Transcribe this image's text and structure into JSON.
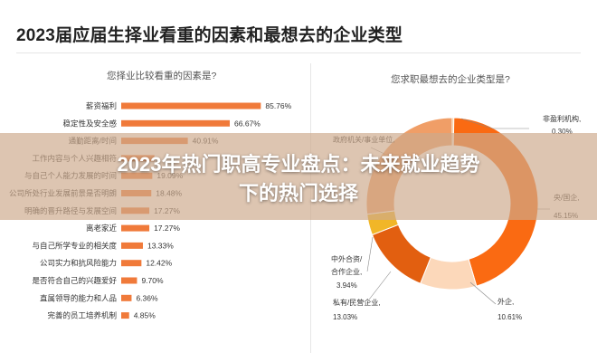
{
  "title": "2023届应届生择业看重的因素和最想去的企业类型",
  "banner": {
    "line1": "2023年热门职高专业盘点：未来就业趋势",
    "line2": "下的热门选择"
  },
  "chart_data": [
    {
      "type": "bar",
      "orientation": "horizontal",
      "title": "您择业比较看重的因素是?",
      "value_format": "percent",
      "xlim": [
        0,
        100
      ],
      "grid": false,
      "legend": "none",
      "bar_color": "#f07a3a",
      "categories": [
        "薪资福利",
        "稳定性及安全感",
        "通勤距离/时间",
        "工作内容与个人兴趣相符",
        "与自己个人能力发展的时间",
        "公司所处行业发展前景是否明朗",
        "明确的晋升路径与发展空间",
        "离老家近",
        "与自己所学专业的相关度",
        "公司实力和抗风险能力",
        "是否符合自己的兴趣爱好",
        "直属领导的能力和人品",
        "完善的员工培养机制"
      ],
      "values": [
        85.76,
        66.67,
        40.91,
        20.4,
        19.09,
        18.48,
        17.27,
        17.27,
        13.33,
        12.42,
        9.7,
        6.36,
        4.85
      ],
      "value_labels": [
        "85.76%",
        "66.67%",
        "40.91%",
        "",
        "19.09%",
        "18.48%",
        "17.27%",
        "17.27%",
        "13.33%",
        "12.42%",
        "9.70%",
        "6.36%",
        "4.85%"
      ]
    },
    {
      "type": "pie",
      "style": "donut",
      "title": "您求职最想去的企业类型是?",
      "legend": "none",
      "slices": [
        {
          "label": "非盈利机构,",
          "value": 0.3,
          "value_label": "0.30%",
          "color": "#f1b56a"
        },
        {
          "label": "央/国企,",
          "value": 45.15,
          "value_label": "45.15%",
          "color": "#fa6a12"
        },
        {
          "label": "外企,",
          "value": 10.61,
          "value_label": "10.61%",
          "color": "#fcd8ba"
        },
        {
          "label": "私有/民营企业,",
          "value": 13.03,
          "value_label": "13.03%",
          "color": "#e25f10"
        },
        {
          "label": "中外合资/合作企业,",
          "value": 3.94,
          "value_label": "3.94%",
          "color": "#f1b628"
        },
        {
          "label": "政府机关/事业单位,",
          "value": 26.97,
          "value_label": "",
          "color": "#f09e67"
        }
      ]
    }
  ]
}
